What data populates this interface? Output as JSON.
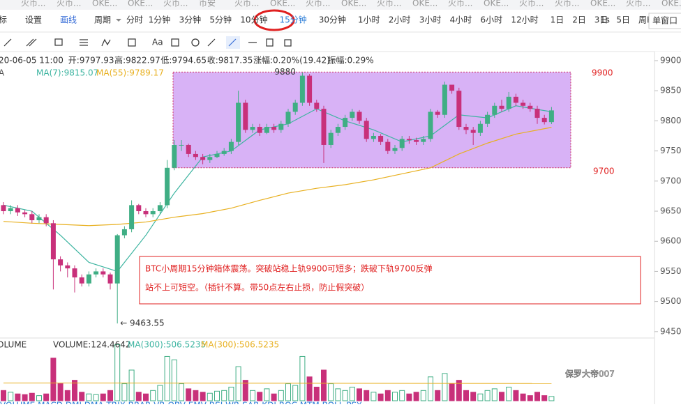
{
  "tabs": [
    "火币...",
    "火币...",
    "OKE...",
    "OKE...",
    "火币...",
    "币安",
    "火币...",
    "OKE...",
    "火币...",
    "OKE...",
    "火币...",
    "OKE...",
    "火币...",
    "OKE...",
    "火币...",
    "火币...",
    "OKE...",
    "火币...",
    "OKE..."
  ],
  "toolbar": {
    "left": [
      "标",
      "设置",
      "画线"
    ],
    "period": "周期",
    "periods": [
      "分时",
      "1分钟",
      "3分钟",
      "5分钟",
      "10分钟",
      "15分钟",
      "30分钟",
      "1小时",
      "2小时",
      "3小时",
      "4小时",
      "6小时",
      "12小时",
      "1日",
      "2日",
      "3日",
      "5日",
      "周K"
    ],
    "active": 5,
    "right": [
      "1s",
      "单窗口"
    ],
    "font_tool": "Aa"
  },
  "info": [
    "20-06-05 11:00",
    "开:9797.93",
    "高:9822.97",
    "低:9794.65",
    "收:9817.35",
    "涨幅:0.20%(19.42)",
    "振幅:0.29%"
  ],
  "chart_data": {
    "type": "candlestick",
    "legend": [
      "A",
      "MA(7):9815.07",
      "MA(55):9789.17"
    ],
    "ylim": [
      9439.4,
      9910.4
    ],
    "yticks": [
      9450,
      9500,
      9550,
      9600,
      9650,
      9700,
      9750,
      9800,
      9850,
      9900
    ],
    "up_color": "#3fae84",
    "down_color": "#c8307a",
    "open": [
      9660,
      9650,
      9655,
      9648,
      9645,
      9635,
      9640,
      9630,
      9570,
      9560,
      9555,
      9540,
      9530,
      9545,
      9550,
      9545,
      9530,
      9610,
      9620,
      9660,
      9650,
      9645,
      9650,
      9660,
      9722,
      9760,
      9760,
      9745,
      9740,
      9735,
      9740,
      9745,
      9750,
      9765,
      9830,
      9785,
      9790,
      9780,
      9790,
      9785,
      9795,
      9815,
      9830,
      9875,
      9830,
      9820,
      9760,
      9780,
      9790,
      9805,
      9815,
      9800,
      9770,
      9775,
      9765,
      9750,
      9755,
      9770,
      9768,
      9765,
      9770,
      9815,
      9810,
      9860,
      9850,
      9790,
      9785,
      9780,
      9795,
      9810,
      9825,
      9820,
      9840,
      9830,
      9825,
      9820,
      9805,
      9797.93
    ],
    "high": [
      9665,
      9660,
      9660,
      9652,
      9650,
      9645,
      9645,
      9635,
      9575,
      9565,
      9560,
      9545,
      9550,
      9555,
      9555,
      9548,
      9612,
      9625,
      9668,
      9662,
      9655,
      9655,
      9665,
      9735,
      9768,
      9768,
      9762,
      9750,
      9745,
      9745,
      9750,
      9755,
      9770,
      9850,
      9835,
      9795,
      9795,
      9795,
      9795,
      9800,
      9820,
      9835,
      9880,
      9878,
      9835,
      9825,
      9785,
      9795,
      9810,
      9820,
      9818,
      9805,
      9780,
      9778,
      9770,
      9760,
      9775,
      9775,
      9772,
      9775,
      9820,
      9818,
      9865,
      9858,
      9855,
      9795,
      9790,
      9800,
      9815,
      9830,
      9835,
      9848,
      9845,
      9835,
      9830,
      9825,
      9810,
      9822.97
    ],
    "low": [
      9645,
      9645,
      9642,
      9640,
      9630,
      9630,
      9625,
      9520,
      9550,
      9540,
      9515,
      9525,
      9525,
      9540,
      9540,
      9520,
      9463.55,
      9605,
      9615,
      9645,
      9640,
      9640,
      9645,
      9655,
      9718,
      9750,
      9740,
      9735,
      9728,
      9730,
      9738,
      9742,
      9745,
      9760,
      9780,
      9780,
      9775,
      9778,
      9780,
      9780,
      9790,
      9810,
      9825,
      9825,
      9815,
      9730,
      9755,
      9775,
      9785,
      9800,
      9795,
      9765,
      9765,
      9760,
      9745,
      9745,
      9750,
      9762,
      9760,
      9760,
      9765,
      9805,
      9805,
      9845,
      9785,
      9778,
      9760,
      9775,
      9790,
      9805,
      9815,
      9815,
      9825,
      9820,
      9815,
      9795,
      9794,
      9794.65
    ],
    "close": [
      9650,
      9655,
      9648,
      9645,
      9635,
      9640,
      9630,
      9570,
      9560,
      9555,
      9540,
      9530,
      9545,
      9550,
      9545,
      9530,
      9610,
      9620,
      9660,
      9650,
      9645,
      9650,
      9660,
      9722,
      9760,
      9760,
      9745,
      9740,
      9735,
      9740,
      9745,
      9750,
      9765,
      9830,
      9785,
      9790,
      9780,
      9790,
      9785,
      9795,
      9815,
      9830,
      9875,
      9830,
      9820,
      9760,
      9780,
      9790,
      9805,
      9815,
      9800,
      9770,
      9775,
      9765,
      9750,
      9755,
      9770,
      9768,
      9765,
      9770,
      9815,
      9810,
      9860,
      9850,
      9790,
      9785,
      9780,
      9795,
      9810,
      9825,
      9820,
      9840,
      9830,
      9825,
      9820,
      9805,
      9797.93,
      9817.35
    ],
    "lines": [
      {
        "name": "MA(7)",
        "color": "#3cb4a0",
        "x": [
          0,
          4,
          8,
          12,
          16,
          20,
          24,
          28,
          32,
          36,
          40,
          44,
          48,
          52,
          56,
          60,
          64,
          68,
          72,
          77
        ],
        "values": [
          9660,
          9650,
          9610,
          9565,
          9550,
          9610,
          9680,
          9740,
          9750,
          9785,
          9795,
          9820,
          9800,
          9785,
          9765,
          9775,
          9810,
          9805,
          9825,
          9815.07
        ]
      },
      {
        "name": "MA(55)",
        "color": "#e8b020",
        "x": [
          0,
          4,
          8,
          12,
          16,
          20,
          24,
          28,
          32,
          36,
          40,
          44,
          48,
          52,
          56,
          60,
          64,
          68,
          72,
          77
        ],
        "values": [
          9633,
          9630,
          9628,
          9626,
          9628,
          9632,
          9640,
          9646,
          9655,
          9668,
          9680,
          9688,
          9694,
          9702,
          9712,
          9722,
          9745,
          9763,
          9778,
          9789.17
        ]
      }
    ],
    "box_range": [
      9722,
      9881
    ],
    "high_label": "9880",
    "low_label": "← 9463.55",
    "annotations": [
      "9900",
      "9700"
    ],
    "note": [
      "BTC小周期15分钟箱体震荡。突破站稳上轨9900可短多；跌破下轨9700反弹",
      "站不上可短空。（插针不算。带50点左右止损，防止假突破）"
    ],
    "volume": {
      "legend": [
        "OLUME",
        "VOLUME:124.4642",
        "MA(300):506.5235",
        "MA(300):506.5235"
      ],
      "ylim": [
        0,
        1800
      ],
      "values": [
        300,
        250,
        200,
        180,
        220,
        150,
        200,
        1250,
        500,
        300,
        600,
        250,
        200,
        180,
        200,
        300,
        1650,
        500,
        900,
        250,
        200,
        300,
        450,
        1300,
        1200,
        500,
        350,
        300,
        250,
        220,
        280,
        300,
        400,
        1000,
        600,
        300,
        250,
        350,
        200,
        300,
        500,
        450,
        1300,
        700,
        400,
        900,
        500,
        350,
        300,
        400,
        350,
        300,
        250,
        200,
        300,
        250,
        300,
        200,
        250,
        300,
        700,
        300,
        800,
        500,
        600,
        300,
        250,
        200,
        300,
        350,
        250,
        400,
        300,
        200,
        150,
        250,
        150,
        124.4642
      ],
      "ma": {
        "x": [
          0,
          77
        ],
        "values": [
          520,
          506.5235
        ]
      }
    }
  },
  "watermark": "保罗大帝007",
  "indicators": "VOLUME  MACD  DMI  DMA  TRIX  BRAR  VR  OBV  EMV  RSI  WR  SAR  KDJ  ROC  MTM  BOLL  PSY"
}
